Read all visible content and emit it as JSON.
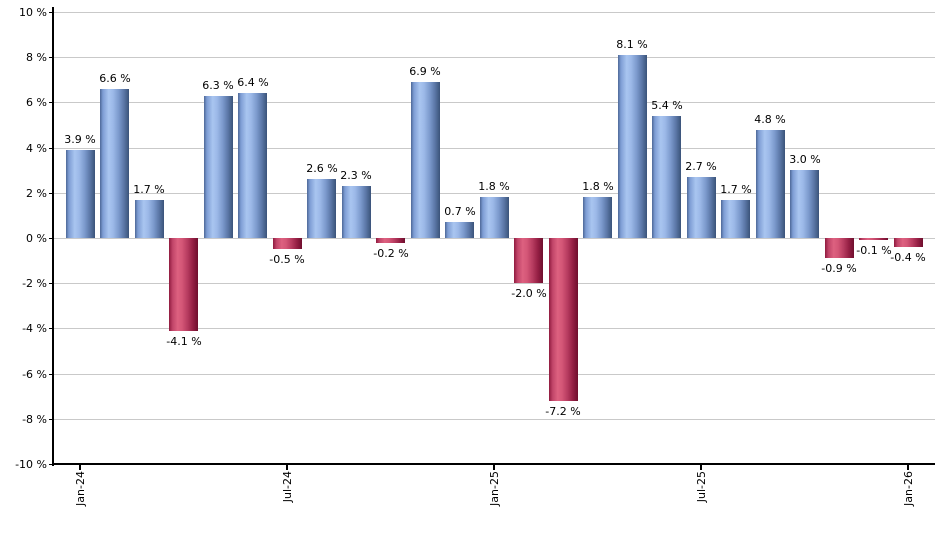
{
  "chart_data": {
    "type": "bar",
    "title": "",
    "xlabel": "",
    "ylabel": "",
    "ylim": [
      -10,
      10
    ],
    "grid": true,
    "legend": "none",
    "bars": [
      {
        "value": 3.9,
        "label": "3.9 %"
      },
      {
        "value": 6.6,
        "label": "6.6 %"
      },
      {
        "value": 1.7,
        "label": "1.7 %"
      },
      {
        "value": -4.1,
        "label": "-4.1 %"
      },
      {
        "value": 6.3,
        "label": "6.3 %"
      },
      {
        "value": 6.4,
        "label": "6.4 %"
      },
      {
        "value": -0.5,
        "label": "-0.5 %"
      },
      {
        "value": 2.6,
        "label": "2.6 %"
      },
      {
        "value": 2.3,
        "label": "2.3 %"
      },
      {
        "value": -0.2,
        "label": "-0.2 %"
      },
      {
        "value": 6.9,
        "label": "6.9 %"
      },
      {
        "value": 0.7,
        "label": "0.7 %"
      },
      {
        "value": 1.8,
        "label": "1.8 %"
      },
      {
        "value": -2.0,
        "label": "-2.0 %"
      },
      {
        "value": -7.2,
        "label": "-7.2 %"
      },
      {
        "value": 1.8,
        "label": "1.8 %"
      },
      {
        "value": 8.1,
        "label": "8.1 %"
      },
      {
        "value": 5.4,
        "label": "5.4 %"
      },
      {
        "value": 2.7,
        "label": "2.7 %"
      },
      {
        "value": 1.7,
        "label": "1.7 %"
      },
      {
        "value": 4.8,
        "label": "4.8 %"
      },
      {
        "value": 3.0,
        "label": "3.0 %"
      },
      {
        "value": -0.9,
        "label": "-0.9 %"
      },
      {
        "value": -0.1,
        "label": "-0.1 %"
      },
      {
        "value": -0.4,
        "label": "-0.4 %"
      }
    ],
    "x_ticks": [
      {
        "label": "Jan-24",
        "bar_index": 0
      },
      {
        "label": "Jul-24",
        "bar_index": 6
      },
      {
        "label": "Jan-25",
        "bar_index": 12
      },
      {
        "label": "Jul-25",
        "bar_index": 18
      },
      {
        "label": "Jan-26",
        "bar_index": 24
      }
    ],
    "y_ticks": [
      {
        "label": "10 %",
        "value": 10
      },
      {
        "label": "8 %",
        "value": 8
      },
      {
        "label": "6 %",
        "value": 6
      },
      {
        "label": "4 %",
        "value": 4
      },
      {
        "label": "2 %",
        "value": 2
      },
      {
        "label": "0 %",
        "value": 0
      },
      {
        "label": "-2 %",
        "value": -2
      },
      {
        "label": "-4 %",
        "value": -4
      },
      {
        "label": "-6 %",
        "value": -6
      },
      {
        "label": "-8 %",
        "value": -8
      },
      {
        "label": "-10 %",
        "value": -10
      }
    ],
    "colors": {
      "positive_light": "#a9c5f0",
      "positive_mid": "#7e9dd4",
      "positive_dark": "#3a5379",
      "negative_light": "#dd6180",
      "negative_mid": "#c04468",
      "negative_dark": "#6f0e2e",
      "gridline": "#c9c9c9",
      "axis": "#000000",
      "label_text": "#000000",
      "background": "#ffffff"
    }
  }
}
